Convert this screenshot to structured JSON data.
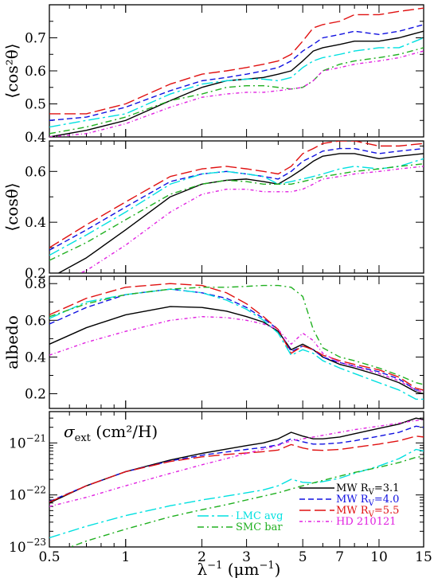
{
  "chart_data": [
    {
      "type": "line",
      "panel": "cos2theta",
      "ylabel": "⟨cos²θ⟩",
      "ylim": [
        0.4,
        0.8
      ],
      "yscale": "linear",
      "yticks": [
        0.4,
        0.5,
        0.6,
        0.7
      ],
      "ytick_labels": [
        "0.4",
        "0.5",
        "0.6",
        "0.7"
      ],
      "x": [
        0.5,
        0.7,
        1.0,
        1.5,
        2.0,
        2.5,
        3.0,
        3.5,
        4.0,
        4.5,
        5.0,
        5.5,
        6.0,
        7.0,
        8.0,
        10.0,
        12.0,
        15.0
      ],
      "series": [
        {
          "name": "MW R_V=3.1",
          "color": "#000000",
          "dash": "solid",
          "values": [
            0.4,
            0.42,
            0.45,
            0.51,
            0.55,
            0.57,
            0.575,
            0.58,
            0.59,
            0.6,
            0.63,
            0.66,
            0.67,
            0.68,
            0.69,
            0.69,
            0.7,
            0.72
          ]
        },
        {
          "name": "MW R_V=4.0",
          "color": "#1010e0",
          "dash": "7,4",
          "values": [
            0.45,
            0.46,
            0.49,
            0.54,
            0.57,
            0.58,
            0.59,
            0.6,
            0.61,
            0.63,
            0.66,
            0.68,
            0.7,
            0.71,
            0.72,
            0.71,
            0.72,
            0.74
          ]
        },
        {
          "name": "MW R_V=5.5",
          "color": "#e01010",
          "dash": "14,5",
          "values": [
            0.47,
            0.47,
            0.5,
            0.56,
            0.59,
            0.6,
            0.61,
            0.62,
            0.63,
            0.65,
            0.69,
            0.73,
            0.74,
            0.75,
            0.77,
            0.77,
            0.78,
            0.79
          ]
        },
        {
          "name": "LMC avg",
          "color": "#00e0e0",
          "dash": "14,4,3,4",
          "values": [
            0.43,
            0.45,
            0.47,
            0.53,
            0.56,
            0.57,
            0.575,
            0.575,
            0.57,
            0.58,
            0.61,
            0.63,
            0.64,
            0.65,
            0.66,
            0.67,
            0.67,
            0.7
          ]
        },
        {
          "name": "SMC bar",
          "color": "#20b020",
          "dash": "8,4,2,4",
          "values": [
            0.41,
            0.43,
            0.46,
            0.51,
            0.53,
            0.55,
            0.555,
            0.555,
            0.55,
            0.545,
            0.55,
            0.57,
            0.6,
            0.62,
            0.63,
            0.64,
            0.65,
            0.67
          ]
        },
        {
          "name": "HD 210121",
          "color": "#e020e0",
          "dash": "4,3,1,3",
          "values": [
            0.4,
            0.41,
            0.44,
            0.49,
            0.52,
            0.53,
            0.535,
            0.535,
            0.54,
            0.545,
            0.55,
            0.57,
            0.6,
            0.61,
            0.62,
            0.63,
            0.64,
            0.66
          ]
        }
      ]
    },
    {
      "type": "line",
      "panel": "costheta",
      "ylabel": "⟨cosθ⟩",
      "ylim": [
        0.2,
        0.72
      ],
      "yscale": "linear",
      "yticks": [
        0.2,
        0.4,
        0.6
      ],
      "ytick_labels": [
        "0.2",
        "0.4",
        "0.6"
      ],
      "x": [
        0.5,
        0.7,
        1.0,
        1.5,
        2.0,
        2.5,
        3.0,
        3.5,
        4.0,
        4.5,
        5.0,
        5.5,
        6.0,
        7.0,
        8.0,
        10.0,
        12.0,
        15.0
      ],
      "series": [
        {
          "name": "MW R_V=3.1",
          "color": "#000000",
          "dash": "solid",
          "values": [
            0.18,
            0.26,
            0.37,
            0.5,
            0.55,
            0.565,
            0.57,
            0.56,
            0.55,
            0.58,
            0.61,
            0.64,
            0.66,
            0.67,
            0.67,
            0.65,
            0.66,
            0.67
          ]
        },
        {
          "name": "MW R_V=4.0",
          "color": "#1010e0",
          "dash": "7,4",
          "values": [
            0.29,
            0.37,
            0.46,
            0.56,
            0.59,
            0.6,
            0.59,
            0.58,
            0.57,
            0.6,
            0.64,
            0.66,
            0.68,
            0.69,
            0.69,
            0.67,
            0.68,
            0.69
          ]
        },
        {
          "name": "MW R_V=5.5",
          "color": "#e01010",
          "dash": "14,5",
          "values": [
            0.3,
            0.39,
            0.48,
            0.58,
            0.61,
            0.62,
            0.61,
            0.6,
            0.59,
            0.62,
            0.67,
            0.69,
            0.71,
            0.72,
            0.72,
            0.7,
            0.7,
            0.71
          ]
        },
        {
          "name": "LMC avg",
          "color": "#00e0e0",
          "dash": "14,4,3,4",
          "values": [
            0.27,
            0.35,
            0.44,
            0.55,
            0.59,
            0.6,
            0.59,
            0.58,
            0.55,
            0.56,
            0.57,
            0.58,
            0.59,
            0.61,
            0.62,
            0.61,
            0.62,
            0.65
          ]
        },
        {
          "name": "SMC bar",
          "color": "#20b020",
          "dash": "8,4,2,4",
          "values": [
            0.25,
            0.32,
            0.41,
            0.51,
            0.55,
            0.565,
            0.56,
            0.55,
            0.55,
            0.55,
            0.56,
            0.57,
            0.58,
            0.59,
            0.6,
            0.61,
            0.62,
            0.63
          ]
        },
        {
          "name": "HD 210121",
          "color": "#e020e0",
          "dash": "4,3,1,3",
          "values": [
            0.15,
            0.21,
            0.31,
            0.44,
            0.51,
            0.53,
            0.53,
            0.52,
            0.52,
            0.52,
            0.53,
            0.55,
            0.57,
            0.58,
            0.59,
            0.6,
            0.61,
            0.62
          ]
        }
      ]
    },
    {
      "type": "line",
      "panel": "albedo",
      "ylabel": "albedo",
      "ylim": [
        0.12,
        0.84
      ],
      "yscale": "linear",
      "yticks": [
        0.2,
        0.4,
        0.6,
        0.8
      ],
      "ytick_labels": [
        "0.2",
        "0.4",
        "0.6",
        "0.8"
      ],
      "x": [
        0.5,
        0.7,
        1.0,
        1.5,
        2.0,
        2.5,
        3.0,
        3.5,
        4.0,
        4.5,
        5.0,
        5.5,
        6.0,
        7.0,
        8.0,
        10.0,
        12.0,
        14.0,
        15.0
      ],
      "series": [
        {
          "name": "MW R_V=3.1",
          "color": "#000000",
          "dash": "solid",
          "values": [
            0.47,
            0.56,
            0.63,
            0.675,
            0.67,
            0.65,
            0.62,
            0.59,
            0.54,
            0.44,
            0.47,
            0.44,
            0.4,
            0.36,
            0.34,
            0.3,
            0.26,
            0.21,
            0.2
          ]
        },
        {
          "name": "MW R_V=4.0",
          "color": "#1010e0",
          "dash": "7,4",
          "values": [
            0.58,
            0.67,
            0.74,
            0.77,
            0.75,
            0.72,
            0.67,
            0.61,
            0.55,
            0.43,
            0.46,
            0.44,
            0.4,
            0.37,
            0.35,
            0.32,
            0.28,
            0.22,
            0.22
          ]
        },
        {
          "name": "MW R_V=5.5",
          "color": "#e01010",
          "dash": "14,5",
          "values": [
            0.63,
            0.72,
            0.78,
            0.8,
            0.79,
            0.75,
            0.69,
            0.62,
            0.55,
            0.42,
            0.46,
            0.44,
            0.41,
            0.38,
            0.36,
            0.33,
            0.29,
            0.23,
            0.22
          ]
        },
        {
          "name": "LMC avg",
          "color": "#00e0e0",
          "dash": "14,4,3,4",
          "values": [
            0.61,
            0.7,
            0.74,
            0.77,
            0.75,
            0.71,
            0.66,
            0.6,
            0.53,
            0.41,
            0.44,
            0.42,
            0.38,
            0.34,
            0.31,
            0.26,
            0.22,
            0.17,
            0.17
          ]
        },
        {
          "name": "SMC bar",
          "color": "#20b020",
          "dash": "8,4,2,4",
          "values": [
            0.62,
            0.69,
            0.74,
            0.77,
            0.78,
            0.78,
            0.785,
            0.79,
            0.79,
            0.78,
            0.73,
            0.55,
            0.45,
            0.4,
            0.38,
            0.34,
            0.3,
            0.26,
            0.25
          ]
        },
        {
          "name": "HD 210121",
          "color": "#e020e0",
          "dash": "4,3,1,3",
          "values": [
            0.41,
            0.48,
            0.54,
            0.6,
            0.62,
            0.615,
            0.6,
            0.58,
            0.55,
            0.47,
            0.53,
            0.49,
            0.42,
            0.37,
            0.35,
            0.31,
            0.27,
            0.22,
            0.21
          ]
        }
      ]
    },
    {
      "type": "line",
      "panel": "sigma_ext",
      "annotation_symbol": "σ",
      "annotation_sub": "ext",
      "annotation_unit": "(cm²/H)",
      "ylim": [
        1e-23,
        4e-21
      ],
      "yscale": "log",
      "yticks": [
        1e-23,
        1e-22,
        1e-21
      ],
      "ytick_bases": [
        "10",
        "10",
        "10"
      ],
      "ytick_exps": [
        "−23",
        "−22",
        "−21"
      ],
      "xlabel_main": "λ",
      "xlabel_sup": "−1",
      "xlabel_unit": "(μm",
      "xlabel_unit_sup": "−1",
      "xlabel_close": ")",
      "xlim": [
        0.5,
        15
      ],
      "xscale": "log",
      "xticks": [
        0.5,
        1,
        2,
        3,
        5,
        7,
        10,
        15
      ],
      "xtick_labels": [
        "0.5",
        "1",
        "2",
        "3",
        "5",
        "7",
        "10",
        "15"
      ],
      "x": [
        0.5,
        0.7,
        1.0,
        1.5,
        2.0,
        2.5,
        3.0,
        3.5,
        4.0,
        4.5,
        5.0,
        5.5,
        6.0,
        7.0,
        8.0,
        10.0,
        12.0,
        14.0,
        15.0
      ],
      "series": [
        {
          "name": "MW R_V=3.1",
          "color": "#000000",
          "dash": "solid",
          "values": [
            7e-23,
            1.5e-22,
            2.8e-22,
            4.7e-22,
            6.3e-22,
            7.6e-22,
            8.9e-22,
            1e-21,
            1.2e-21,
            1.6e-21,
            1.35e-21,
            1.2e-21,
            1.2e-21,
            1.3e-21,
            1.5e-21,
            1.9e-21,
            2.3e-21,
            3e-21,
            2.8e-21
          ]
        },
        {
          "name": "MW R_V=4.0",
          "color": "#1010e0",
          "dash": "7,4",
          "values": [
            7.5e-23,
            1.5e-22,
            2.8e-22,
            4.5e-22,
            5.8e-22,
            6.7e-22,
            7.5e-22,
            8.2e-22,
            9.2e-22,
            1.2e-21,
            1.05e-21,
            9.5e-22,
            9.5e-22,
            1e-21,
            1.1e-21,
            1.35e-21,
            1.6e-21,
            2.1e-21,
            2e-21
          ]
        },
        {
          "name": "MW R_V=5.5",
          "color": "#e01010",
          "dash": "14,5",
          "values": [
            7.3e-23,
            1.5e-22,
            2.8e-22,
            4.4e-22,
            5.4e-22,
            6e-22,
            6.4e-22,
            6.8e-22,
            7.3e-22,
            9.3e-22,
            8e-22,
            7.3e-22,
            7.2e-22,
            7.5e-22,
            8.2e-22,
            9.5e-22,
            1.1e-21,
            1.35e-21,
            1.3e-21
          ]
        },
        {
          "name": "LMC avg",
          "color": "#00e0e0",
          "dash": "14,4,3,4",
          "values": [
            1.5e-23,
            2.5e-23,
            4e-23,
            6.2e-23,
            8e-23,
            9.5e-23,
            1.1e-22,
            1.25e-22,
            1.5e-22,
            2e-22,
            1.75e-22,
            1.7e-22,
            1.8e-22,
            2.1e-22,
            2.6e-22,
            3.6e-22,
            5e-22,
            7.5e-22,
            7e-22
          ]
        },
        {
          "name": "SMC bar",
          "color": "#20b020",
          "dash": "8,4,2,4",
          "values": [
            7e-24,
            1.3e-23,
            2.2e-23,
            3.8e-23,
            5.2e-23,
            6.5e-23,
            8e-23,
            9.5e-23,
            1.1e-22,
            1.3e-22,
            1.5e-22,
            1.7e-22,
            1.9e-22,
            2.3e-22,
            2.7e-22,
            3.4e-22,
            4.2e-22,
            5.3e-22,
            5.5e-22
          ]
        },
        {
          "name": "HD 210121",
          "color": "#e020e0",
          "dash": "4,3,1,3",
          "values": [
            6e-23,
            9e-23,
            1.5e-22,
            2.6e-22,
            3.8e-22,
            5e-22,
            6.3e-22,
            7.6e-22,
            9e-22,
            1.1e-21,
            1.2e-21,
            1.3e-21,
            1.4e-21,
            1.6e-21,
            1.8e-21,
            2.1e-21,
            2.4e-21,
            2.7e-21,
            2.8e-21
          ]
        }
      ]
    }
  ],
  "legend": {
    "placement": "bottom-right of lower panel",
    "right_entries": [
      {
        "prefix": "MW R",
        "sub": "V",
        "suffix": "=3.1",
        "color": "#000000",
        "dash": "solid"
      },
      {
        "prefix": "MW R",
        "sub": "V",
        "suffix": "=4.0",
        "color": "#1010e0",
        "dash": "7,4"
      },
      {
        "prefix": "MW R",
        "sub": "V",
        "suffix": "=5.5",
        "color": "#e01010",
        "dash": "14,5"
      },
      {
        "prefix": "HD 210121",
        "sub": "",
        "suffix": "",
        "color": "#e020e0",
        "dash": "4,3,1,3"
      }
    ],
    "left_entries": [
      {
        "prefix": "LMC avg",
        "sub": "",
        "suffix": "",
        "color": "#00e0e0",
        "dash": "14,4,3,4"
      },
      {
        "prefix": "SMC bar",
        "sub": "",
        "suffix": "",
        "color": "#20b020",
        "dash": "8,4,2,4"
      }
    ]
  }
}
